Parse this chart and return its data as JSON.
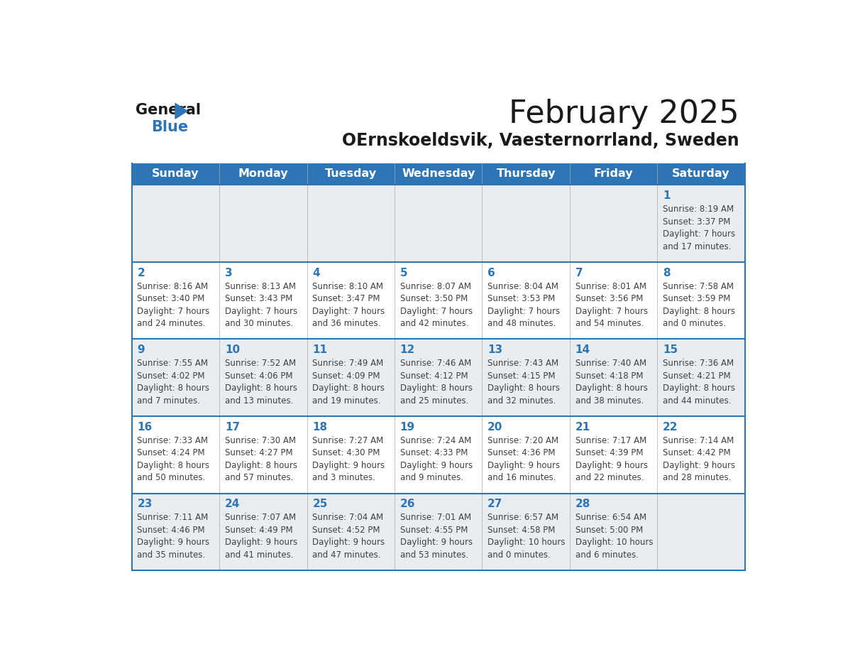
{
  "title": "February 2025",
  "subtitle": "OErnskoeldsvik, Vaesternorrland, Sweden",
  "header_color": "#2e75b6",
  "header_text_color": "#ffffff",
  "cell_bg_even": "#e8edf2",
  "cell_bg_odd": "#ffffff",
  "day_number_color": "#2e75b6",
  "text_color": "#404040",
  "line_color": "#2e75b6",
  "days_of_week": [
    "Sunday",
    "Monday",
    "Tuesday",
    "Wednesday",
    "Thursday",
    "Friday",
    "Saturday"
  ],
  "weeks": [
    [
      {
        "day": null,
        "info": null
      },
      {
        "day": null,
        "info": null
      },
      {
        "day": null,
        "info": null
      },
      {
        "day": null,
        "info": null
      },
      {
        "day": null,
        "info": null
      },
      {
        "day": null,
        "info": null
      },
      {
        "day": "1",
        "info": "Sunrise: 8:19 AM\nSunset: 3:37 PM\nDaylight: 7 hours\nand 17 minutes."
      }
    ],
    [
      {
        "day": "2",
        "info": "Sunrise: 8:16 AM\nSunset: 3:40 PM\nDaylight: 7 hours\nand 24 minutes."
      },
      {
        "day": "3",
        "info": "Sunrise: 8:13 AM\nSunset: 3:43 PM\nDaylight: 7 hours\nand 30 minutes."
      },
      {
        "day": "4",
        "info": "Sunrise: 8:10 AM\nSunset: 3:47 PM\nDaylight: 7 hours\nand 36 minutes."
      },
      {
        "day": "5",
        "info": "Sunrise: 8:07 AM\nSunset: 3:50 PM\nDaylight: 7 hours\nand 42 minutes."
      },
      {
        "day": "6",
        "info": "Sunrise: 8:04 AM\nSunset: 3:53 PM\nDaylight: 7 hours\nand 48 minutes."
      },
      {
        "day": "7",
        "info": "Sunrise: 8:01 AM\nSunset: 3:56 PM\nDaylight: 7 hours\nand 54 minutes."
      },
      {
        "day": "8",
        "info": "Sunrise: 7:58 AM\nSunset: 3:59 PM\nDaylight: 8 hours\nand 0 minutes."
      }
    ],
    [
      {
        "day": "9",
        "info": "Sunrise: 7:55 AM\nSunset: 4:02 PM\nDaylight: 8 hours\nand 7 minutes."
      },
      {
        "day": "10",
        "info": "Sunrise: 7:52 AM\nSunset: 4:06 PM\nDaylight: 8 hours\nand 13 minutes."
      },
      {
        "day": "11",
        "info": "Sunrise: 7:49 AM\nSunset: 4:09 PM\nDaylight: 8 hours\nand 19 minutes."
      },
      {
        "day": "12",
        "info": "Sunrise: 7:46 AM\nSunset: 4:12 PM\nDaylight: 8 hours\nand 25 minutes."
      },
      {
        "day": "13",
        "info": "Sunrise: 7:43 AM\nSunset: 4:15 PM\nDaylight: 8 hours\nand 32 minutes."
      },
      {
        "day": "14",
        "info": "Sunrise: 7:40 AM\nSunset: 4:18 PM\nDaylight: 8 hours\nand 38 minutes."
      },
      {
        "day": "15",
        "info": "Sunrise: 7:36 AM\nSunset: 4:21 PM\nDaylight: 8 hours\nand 44 minutes."
      }
    ],
    [
      {
        "day": "16",
        "info": "Sunrise: 7:33 AM\nSunset: 4:24 PM\nDaylight: 8 hours\nand 50 minutes."
      },
      {
        "day": "17",
        "info": "Sunrise: 7:30 AM\nSunset: 4:27 PM\nDaylight: 8 hours\nand 57 minutes."
      },
      {
        "day": "18",
        "info": "Sunrise: 7:27 AM\nSunset: 4:30 PM\nDaylight: 9 hours\nand 3 minutes."
      },
      {
        "day": "19",
        "info": "Sunrise: 7:24 AM\nSunset: 4:33 PM\nDaylight: 9 hours\nand 9 minutes."
      },
      {
        "day": "20",
        "info": "Sunrise: 7:20 AM\nSunset: 4:36 PM\nDaylight: 9 hours\nand 16 minutes."
      },
      {
        "day": "21",
        "info": "Sunrise: 7:17 AM\nSunset: 4:39 PM\nDaylight: 9 hours\nand 22 minutes."
      },
      {
        "day": "22",
        "info": "Sunrise: 7:14 AM\nSunset: 4:42 PM\nDaylight: 9 hours\nand 28 minutes."
      }
    ],
    [
      {
        "day": "23",
        "info": "Sunrise: 7:11 AM\nSunset: 4:46 PM\nDaylight: 9 hours\nand 35 minutes."
      },
      {
        "day": "24",
        "info": "Sunrise: 7:07 AM\nSunset: 4:49 PM\nDaylight: 9 hours\nand 41 minutes."
      },
      {
        "day": "25",
        "info": "Sunrise: 7:04 AM\nSunset: 4:52 PM\nDaylight: 9 hours\nand 47 minutes."
      },
      {
        "day": "26",
        "info": "Sunrise: 7:01 AM\nSunset: 4:55 PM\nDaylight: 9 hours\nand 53 minutes."
      },
      {
        "day": "27",
        "info": "Sunrise: 6:57 AM\nSunset: 4:58 PM\nDaylight: 10 hours\nand 0 minutes."
      },
      {
        "day": "28",
        "info": "Sunrise: 6:54 AM\nSunset: 5:00 PM\nDaylight: 10 hours\nand 6 minutes."
      },
      {
        "day": null,
        "info": null
      }
    ]
  ],
  "logo_general_color": "#1a1a1a",
  "logo_blue_color": "#2e75b6",
  "title_fontsize": 32,
  "subtitle_fontsize": 17,
  "header_fontsize": 11.5,
  "day_num_fontsize": 11,
  "info_fontsize": 8.5
}
